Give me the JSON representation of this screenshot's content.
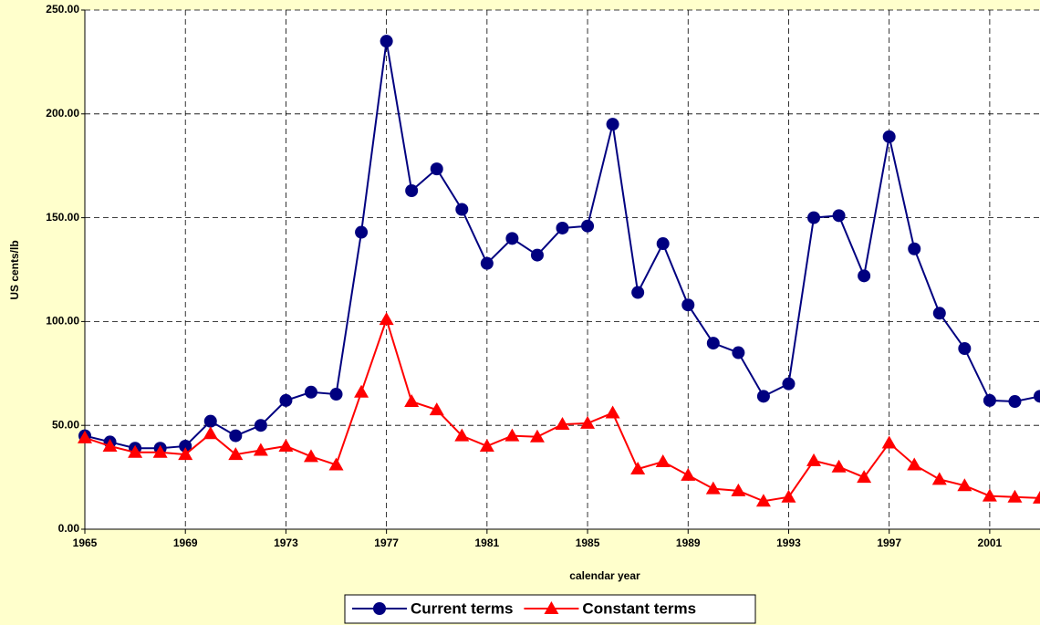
{
  "chart_data": {
    "type": "line",
    "x_label": "calendar year",
    "y_label": "US cents/lb",
    "x": [
      1965,
      1966,
      1967,
      1968,
      1969,
      1970,
      1971,
      1972,
      1973,
      1974,
      1975,
      1976,
      1977,
      1978,
      1979,
      1980,
      1981,
      1982,
      1983,
      1984,
      1985,
      1986,
      1987,
      1988,
      1989,
      1990,
      1991,
      1992,
      1993,
      1994,
      1995,
      1996,
      1997,
      1998,
      1999,
      2000,
      2001,
      2002,
      2003
    ],
    "series": [
      {
        "name": "Current terms",
        "color": "#000080",
        "marker": "circle",
        "values": [
          45,
          42,
          39,
          39,
          40,
          52,
          45,
          50,
          62,
          66,
          65,
          143,
          235,
          163,
          173.5,
          154,
          128,
          140,
          132,
          145,
          146,
          195,
          114,
          137.5,
          108,
          89.6,
          85,
          64,
          70,
          150,
          151,
          122,
          189,
          135,
          104,
          87,
          62,
          61.5,
          64
        ]
      },
      {
        "name": "Constant terms",
        "color": "#ff0000",
        "marker": "triangle",
        "values": [
          44,
          40,
          37,
          37,
          36,
          46,
          36,
          38,
          40,
          35,
          31,
          66,
          101,
          61.5,
          57.5,
          45,
          40,
          45,
          44.5,
          50.5,
          51,
          56,
          29,
          32.5,
          26,
          19.5,
          18.5,
          13.5,
          15.5,
          33,
          30,
          25,
          41.5,
          31,
          24,
          21,
          16,
          15.5,
          15
        ]
      }
    ],
    "xlim": [
      1965,
      2003
    ],
    "xticks": [
      1965,
      1969,
      1973,
      1977,
      1981,
      1985,
      1989,
      1993,
      1997,
      2001
    ],
    "ylim": [
      0,
      250
    ],
    "yticks": [
      {
        "value": 0,
        "label": "0.00"
      },
      {
        "value": 50,
        "label": "50.00"
      },
      {
        "value": 100,
        "label": "100.00"
      },
      {
        "value": 150,
        "label": "150.00"
      },
      {
        "value": 200,
        "label": "200.00"
      },
      {
        "value": 250,
        "label": "250.00"
      }
    ],
    "grid": true,
    "legend": "bottom"
  }
}
